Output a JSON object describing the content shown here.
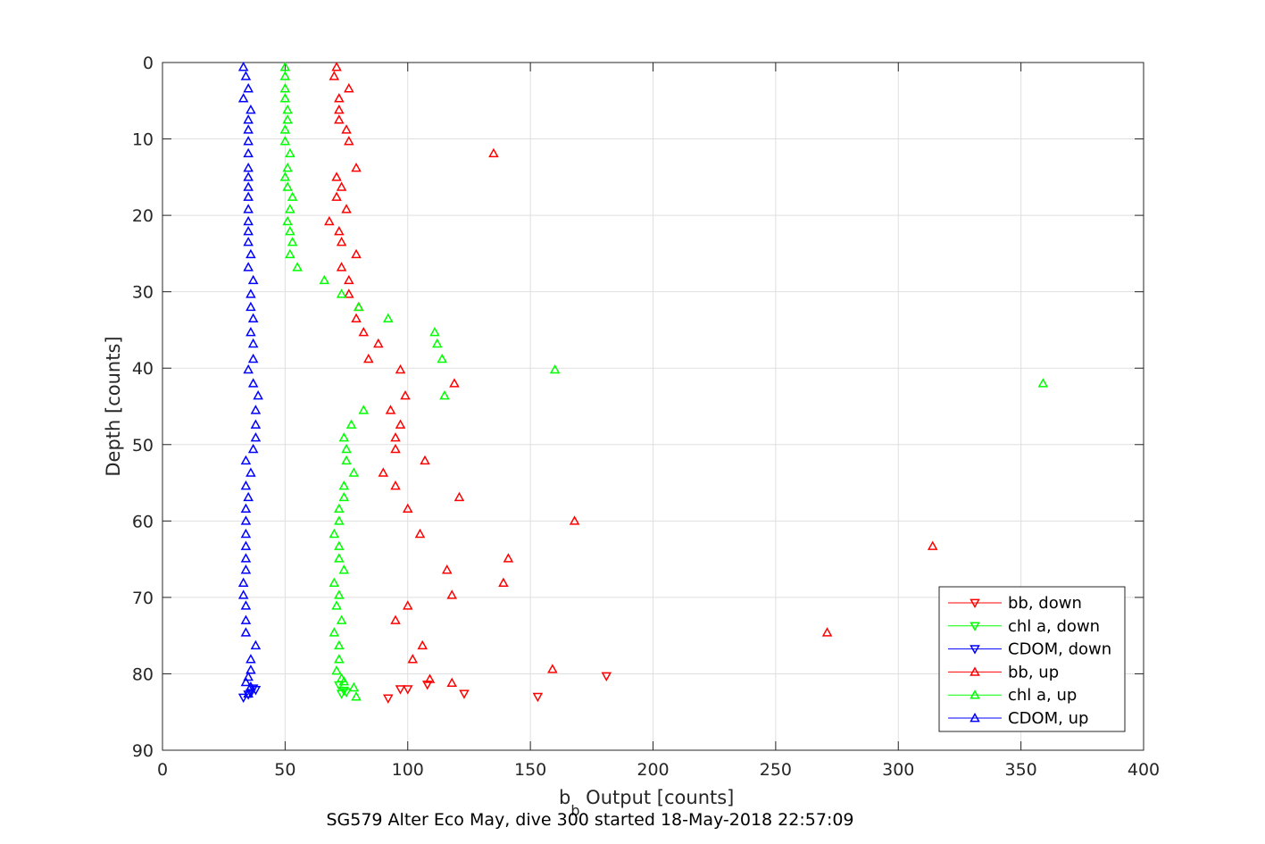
{
  "chart_data": {
    "type": "scatter",
    "title": "SG579 Alter Eco May, dive 300 started 18-May-2018 22:57:09",
    "xlabel_main": "b",
    "xlabel_sub": "b",
    "xlabel_rest": " Output [counts]",
    "ylabel": "Depth [counts]",
    "xlim": [
      0,
      400
    ],
    "ylim": [
      0,
      90
    ],
    "y_reversed": true,
    "grid": true,
    "legend_position": "bottom-right",
    "xticks": [
      "0",
      "50",
      "100",
      "150",
      "200",
      "250",
      "300",
      "350",
      "400"
    ],
    "yticks": [
      "0",
      "10",
      "20",
      "30",
      "40",
      "50",
      "60",
      "70",
      "80",
      "90"
    ],
    "series": [
      {
        "name": "bb, down",
        "color": "#ff0000",
        "marker": "triangle-down",
        "points": [
          [
            97,
            82
          ],
          [
            100,
            82
          ],
          [
            92,
            83.2
          ],
          [
            108,
            81.4
          ],
          [
            123,
            82.6
          ],
          [
            153,
            83
          ],
          [
            181,
            80.3
          ]
        ]
      },
      {
        "name": "chl a, down",
        "color": "#00ff00",
        "marker": "triangle-down",
        "points": [
          [
            73,
            82.6
          ],
          [
            74,
            82.2
          ],
          [
            72,
            81.5
          ],
          [
            75,
            82.4
          ]
        ]
      },
      {
        "name": "CDOM, down",
        "color": "#0000ff",
        "marker": "triangle-down",
        "points": [
          [
            33,
            83.1
          ],
          [
            36,
            82.5
          ],
          [
            38,
            82.1
          ],
          [
            35,
            82.7
          ],
          [
            37,
            81.9
          ]
        ]
      },
      {
        "name": "bb, up",
        "color": "#ff0000",
        "marker": "triangle-up",
        "points": [
          [
            71,
            0.6
          ],
          [
            70,
            1.8
          ],
          [
            76,
            3.4
          ],
          [
            72,
            4.7
          ],
          [
            72,
            6.2
          ],
          [
            72,
            7.5
          ],
          [
            75,
            8.8
          ],
          [
            76,
            10.3
          ],
          [
            135,
            11.9
          ],
          [
            79,
            13.8
          ],
          [
            71,
            15
          ],
          [
            73,
            16.3
          ],
          [
            71,
            17.6
          ],
          [
            75,
            19.2
          ],
          [
            68,
            20.8
          ],
          [
            72,
            22.1
          ],
          [
            73,
            23.5
          ],
          [
            79,
            25.1
          ],
          [
            73,
            26.8
          ],
          [
            76,
            28.5
          ],
          [
            76,
            30.3
          ],
          [
            80,
            32
          ],
          [
            79,
            33.5
          ],
          [
            82,
            35.3
          ],
          [
            88,
            36.8
          ],
          [
            84,
            38.8
          ],
          [
            97,
            40.2
          ],
          [
            119,
            42
          ],
          [
            99,
            43.6
          ],
          [
            93,
            45.5
          ],
          [
            97,
            47.4
          ],
          [
            95,
            49.1
          ],
          [
            95,
            50.6
          ],
          [
            107,
            52.1
          ],
          [
            90,
            53.7
          ],
          [
            95,
            55.4
          ],
          [
            121,
            56.9
          ],
          [
            100,
            58.4
          ],
          [
            168,
            60
          ],
          [
            105,
            61.7
          ],
          [
            314,
            63.3
          ],
          [
            141,
            64.9
          ],
          [
            116,
            66.4
          ],
          [
            139,
            68.1
          ],
          [
            118,
            69.7
          ],
          [
            100,
            71.1
          ],
          [
            95,
            73
          ],
          [
            271,
            74.6
          ],
          [
            106,
            76.3
          ],
          [
            102,
            78.1
          ],
          [
            159,
            79.4
          ],
          [
            109,
            80.7
          ],
          [
            118,
            81.2
          ]
        ]
      },
      {
        "name": "chl a, up",
        "color": "#00ff00",
        "marker": "triangle-up",
        "points": [
          [
            50,
            0.6
          ],
          [
            50,
            1.8
          ],
          [
            50,
            3.4
          ],
          [
            50,
            4.7
          ],
          [
            51,
            6.2
          ],
          [
            51,
            7.5
          ],
          [
            50,
            8.8
          ],
          [
            50,
            10.3
          ],
          [
            52,
            11.9
          ],
          [
            51,
            13.8
          ],
          [
            50,
            15
          ],
          [
            51,
            16.3
          ],
          [
            53,
            17.6
          ],
          [
            52,
            19.2
          ],
          [
            51,
            20.8
          ],
          [
            52,
            22.1
          ],
          [
            53,
            23.5
          ],
          [
            52,
            25.1
          ],
          [
            55,
            26.8
          ],
          [
            66,
            28.5
          ],
          [
            73,
            30.3
          ],
          [
            80,
            32
          ],
          [
            92,
            33.5
          ],
          [
            111,
            35.3
          ],
          [
            112,
            36.8
          ],
          [
            114,
            38.8
          ],
          [
            160,
            40.2
          ],
          [
            359,
            42
          ],
          [
            115,
            43.6
          ],
          [
            82,
            45.5
          ],
          [
            77,
            47.4
          ],
          [
            74,
            49.1
          ],
          [
            75,
            50.6
          ],
          [
            75,
            52.1
          ],
          [
            78,
            53.7
          ],
          [
            74,
            55.4
          ],
          [
            74,
            56.9
          ],
          [
            72,
            58.4
          ],
          [
            72,
            60
          ],
          [
            70,
            61.7
          ],
          [
            72,
            63.3
          ],
          [
            72,
            64.9
          ],
          [
            74,
            66.4
          ],
          [
            70,
            68.1
          ],
          [
            72,
            69.7
          ],
          [
            71,
            71.1
          ],
          [
            73,
            73
          ],
          [
            70,
            74.6
          ],
          [
            72,
            76.3
          ],
          [
            72,
            78.1
          ],
          [
            71,
            79.6
          ],
          [
            73,
            80.6
          ],
          [
            74,
            81
          ],
          [
            78,
            81.8
          ],
          [
            79,
            83
          ]
        ]
      },
      {
        "name": "CDOM, up",
        "color": "#0000ff",
        "marker": "triangle-up",
        "points": [
          [
            33,
            0.6
          ],
          [
            34,
            1.8
          ],
          [
            35,
            3.4
          ],
          [
            33,
            4.7
          ],
          [
            36,
            6.2
          ],
          [
            35,
            7.5
          ],
          [
            35,
            8.8
          ],
          [
            35,
            10.3
          ],
          [
            35,
            11.9
          ],
          [
            35,
            13.8
          ],
          [
            35,
            15
          ],
          [
            35,
            16.3
          ],
          [
            35,
            17.6
          ],
          [
            35,
            19.2
          ],
          [
            35,
            20.8
          ],
          [
            35,
            22.1
          ],
          [
            35,
            23.5
          ],
          [
            36,
            25.1
          ],
          [
            35,
            26.8
          ],
          [
            37,
            28.5
          ],
          [
            36,
            30.3
          ],
          [
            36,
            32
          ],
          [
            37,
            33.5
          ],
          [
            36,
            35.3
          ],
          [
            37,
            36.8
          ],
          [
            37,
            38.8
          ],
          [
            35,
            40.2
          ],
          [
            37,
            42
          ],
          [
            39,
            43.6
          ],
          [
            38,
            45.5
          ],
          [
            38,
            47.4
          ],
          [
            38,
            49.1
          ],
          [
            37,
            50.6
          ],
          [
            34,
            52.1
          ],
          [
            36,
            53.7
          ],
          [
            34,
            55.4
          ],
          [
            35,
            56.9
          ],
          [
            34,
            58.4
          ],
          [
            34,
            60
          ],
          [
            34,
            61.7
          ],
          [
            34,
            63.3
          ],
          [
            34,
            64.9
          ],
          [
            34,
            66.4
          ],
          [
            33,
            68.1
          ],
          [
            33,
            69.7
          ],
          [
            34,
            71.1
          ],
          [
            34,
            73
          ],
          [
            34,
            74.6
          ],
          [
            38,
            76.3
          ],
          [
            36,
            78.1
          ],
          [
            36,
            79.5
          ],
          [
            35,
            80.4
          ],
          [
            34,
            81.1
          ],
          [
            36,
            81.7
          ],
          [
            35,
            82.6
          ]
        ]
      }
    ]
  }
}
